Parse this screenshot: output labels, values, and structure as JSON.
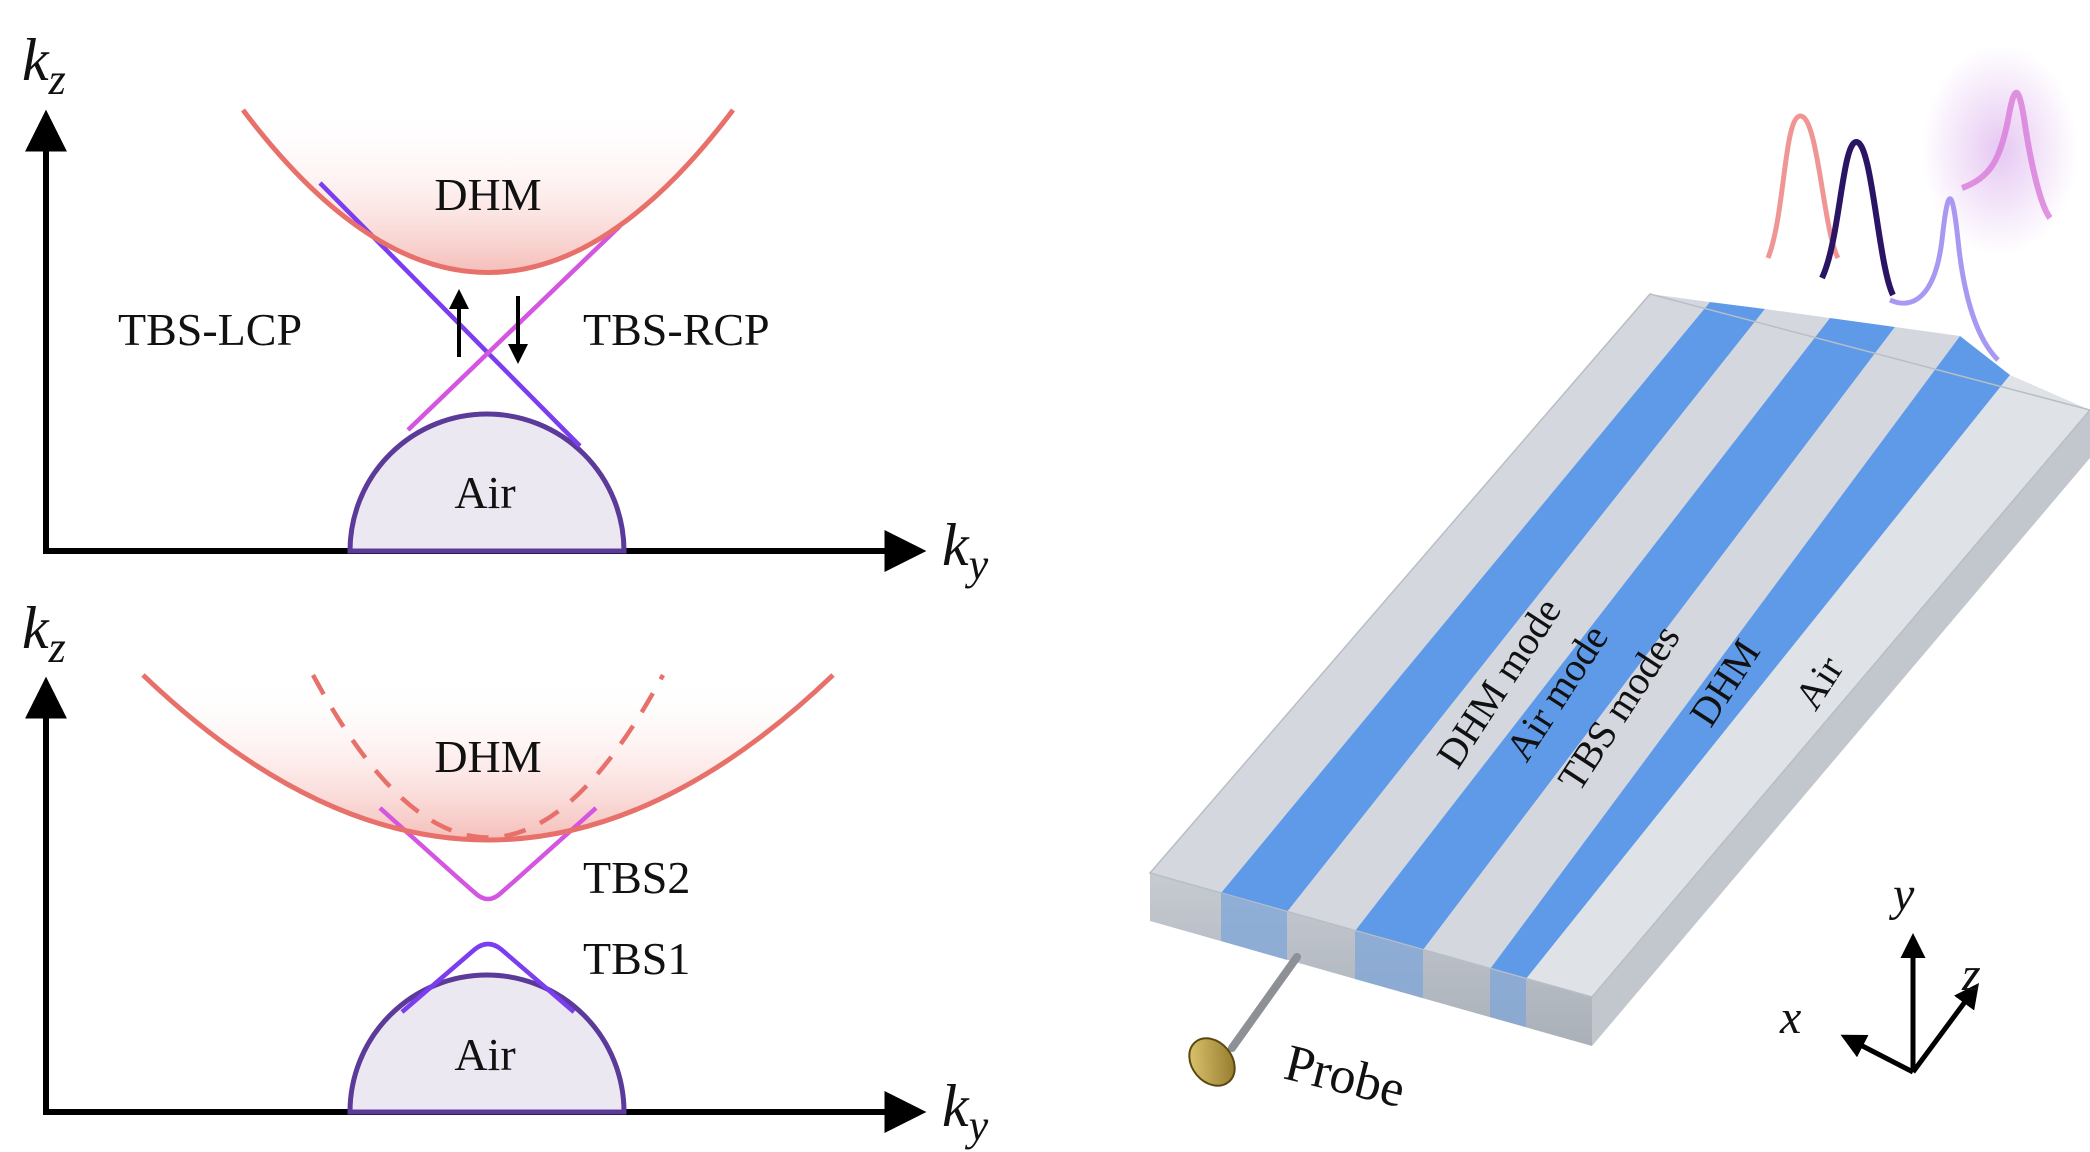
{
  "top_panel": {
    "axis_y_label": "k",
    "axis_y_sub": "z",
    "axis_x_label": "k",
    "axis_x_sub": "y",
    "dhm_label": "DHM",
    "air_label": "Air",
    "tbs_lcp_label": "TBS-LCP",
    "tbs_rcp_label": "TBS-RCP"
  },
  "bottom_panel": {
    "axis_y_label": "k",
    "axis_y_sub": "z",
    "axis_x_label": "k",
    "axis_x_sub": "y",
    "dhm_label": "DHM",
    "air_label": "Air",
    "tbs2_label": "TBS2",
    "tbs1_label": "TBS1"
  },
  "device": {
    "stripe_labels": [
      "DHM mode",
      "Air mode",
      "TBS modes",
      "DHM",
      "Air"
    ],
    "probe_label": "Probe",
    "axes": {
      "x": "x",
      "y": "y",
      "z": "z"
    }
  },
  "colors": {
    "dhm": "#e8706a",
    "air": "#5b3a9a",
    "air_fill": "#ece8f2",
    "tbs_lcp": "#7a3df0",
    "tbs_rcp": "#d455e0",
    "stripe_blue": "#5f9ae8",
    "stripe_grey": "#d4d8de"
  }
}
